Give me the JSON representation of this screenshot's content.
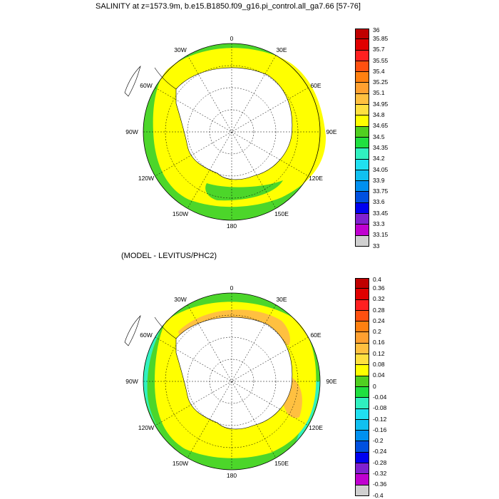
{
  "panels": [
    {
      "title": "SALINITY at z=1573.9m, b.e15.B1850.f09_g16.pi_control.all_ga7.66 [57-76]",
      "colorbar": {
        "labels": [
          "36",
          "35.85",
          "35.7",
          "35.55",
          "35.4",
          "35.25",
          "35.1",
          "34.95",
          "34.8",
          "34.65",
          "34.5",
          "34.35",
          "34.2",
          "34.05",
          "33.9",
          "33.75",
          "33.6",
          "33.45",
          "33.3",
          "33.15",
          "33"
        ],
        "colors": [
          "#c00000",
          "#e00000",
          "#ff2020",
          "#ff5010",
          "#ff8010",
          "#ffa030",
          "#ffc040",
          "#ffe040",
          "#ffff00",
          "#50d020",
          "#20e040",
          "#30f0c0",
          "#20e0f0",
          "#10c0f0",
          "#0090f0",
          "#0050e0",
          "#0000f0",
          "#8020d0",
          "#c000d0",
          "#d0d0d0",
          "#707070"
        ]
      },
      "map_colors": {
        "ocean": "#4cd62a",
        "band": "#ffff00",
        "land": "#ffffff"
      }
    },
    {
      "title": "(MODEL - LEVITUS/PHC2)",
      "colorbar": {
        "labels": [
          "0.4",
          "0.36",
          "0.32",
          "0.28",
          "0.24",
          "0.2",
          "0.16",
          "0.12",
          "0.08",
          "0.04",
          "0",
          "-0.04",
          "-0.08",
          "-0.12",
          "-0.16",
          "-0.2",
          "-0.24",
          "-0.28",
          "-0.32",
          "-0.36",
          "-0.4"
        ],
        "colors": [
          "#c00000",
          "#e00000",
          "#ff2020",
          "#ff5010",
          "#ff8010",
          "#ffa030",
          "#ffc040",
          "#ffe040",
          "#ffff00",
          "#50d020",
          "#20e040",
          "#30f0c0",
          "#20e0f0",
          "#10c0f0",
          "#0090f0",
          "#0050e0",
          "#0000f0",
          "#8020d0",
          "#c000d0",
          "#d0d0d0",
          "#707070"
        ]
      },
      "map_colors": {
        "ocean": "#4cd62a",
        "band": "#ffff00",
        "land": "#ffffff",
        "orange": "#ffc040",
        "cyan": "#30f0c0"
      }
    }
  ],
  "longitude_labels": [
    "0",
    "30E",
    "60E",
    "90E",
    "120E",
    "150E",
    "180",
    "150W",
    "120W",
    "90W",
    "60W",
    "30W"
  ]
}
